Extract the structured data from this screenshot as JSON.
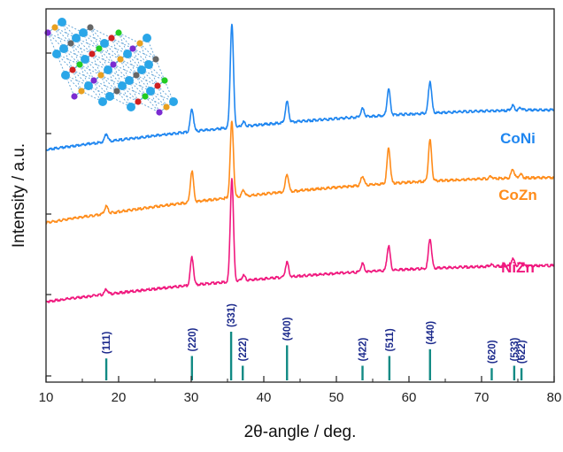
{
  "chart_data": {
    "type": "line",
    "xlabel": "2θ-angle / deg.",
    "ylabel": "Intensity / a.u.",
    "xlim": [
      10,
      80
    ],
    "x_ticks": [
      10,
      20,
      30,
      40,
      50,
      60,
      70,
      80
    ],
    "y_tick_labels": "none",
    "grid": false,
    "legend": "inline labels at right",
    "series": [
      {
        "name": "CoNi",
        "color": "#1f86f0",
        "baseline_start": 0.42,
        "baseline_end": 0.95,
        "peaks": [
          {
            "x": 18.3,
            "h": 0.32
          },
          {
            "x": 30.1,
            "h": 0.92
          },
          {
            "x": 35.6,
            "h": 4.22
          },
          {
            "x": 37.2,
            "h": 0.18
          },
          {
            "x": 43.2,
            "h": 0.85
          },
          {
            "x": 53.6,
            "h": 0.33
          },
          {
            "x": 57.2,
            "h": 1.06
          },
          {
            "x": 62.9,
            "h": 1.3
          },
          {
            "x": 74.3,
            "h": 0.19
          },
          {
            "x": 75.4,
            "h": 0.1
          }
        ]
      },
      {
        "name": "CoZn",
        "color": "#ff8c1a",
        "baseline_start": -0.55,
        "baseline_end": 0.05,
        "peaks": [
          {
            "x": 18.3,
            "h": 0.3
          },
          {
            "x": 30.1,
            "h": 1.27
          },
          {
            "x": 35.6,
            "h": 3.1
          },
          {
            "x": 37.2,
            "h": 0.24
          },
          {
            "x": 43.2,
            "h": 0.72
          },
          {
            "x": 53.6,
            "h": 0.38
          },
          {
            "x": 57.2,
            "h": 1.45
          },
          {
            "x": 62.9,
            "h": 1.68
          },
          {
            "x": 71.3,
            "h": 0.1
          },
          {
            "x": 74.3,
            "h": 0.35
          },
          {
            "x": 75.4,
            "h": 0.15
          }
        ]
      },
      {
        "name": "NiZn",
        "color": "#f0187e",
        "baseline_start": -1.6,
        "baseline_end": -1.12,
        "peaks": [
          {
            "x": 18.3,
            "h": 0.2
          },
          {
            "x": 30.1,
            "h": 1.13
          },
          {
            "x": 35.6,
            "h": 4.2
          },
          {
            "x": 37.2,
            "h": 0.2
          },
          {
            "x": 43.2,
            "h": 0.6
          },
          {
            "x": 53.6,
            "h": 0.35
          },
          {
            "x": 57.2,
            "h": 1.0
          },
          {
            "x": 62.9,
            "h": 1.22
          },
          {
            "x": 71.3,
            "h": 0.08
          },
          {
            "x": 74.3,
            "h": 0.28
          },
          {
            "x": 75.4,
            "h": 0.12
          }
        ]
      }
    ],
    "reference": {
      "color": "#118a84",
      "label_color": "#1c2a8c",
      "peaks": [
        {
          "x": 18.3,
          "label": "(111)",
          "h": 0.45
        },
        {
          "x": 30.1,
          "label": "(220)",
          "h": 0.5
        },
        {
          "x": 35.5,
          "label": "(331)",
          "h": 1.0
        },
        {
          "x": 37.1,
          "label": "(222)",
          "h": 0.3
        },
        {
          "x": 43.2,
          "label": "(400)",
          "h": 0.72
        },
        {
          "x": 53.6,
          "label": "(422)",
          "h": 0.3
        },
        {
          "x": 57.3,
          "label": "(511)",
          "h": 0.5
        },
        {
          "x": 62.9,
          "label": "(440)",
          "h": 0.64
        },
        {
          "x": 71.4,
          "label": "(620)",
          "h": 0.25
        },
        {
          "x": 74.5,
          "label": "(533)",
          "h": 0.3
        },
        {
          "x": 75.5,
          "label": "(622)",
          "h": 0.25
        }
      ]
    }
  }
}
